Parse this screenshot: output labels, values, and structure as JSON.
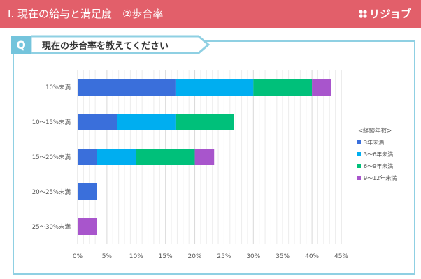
{
  "header": {
    "title": "I. 現在の給与と満足度　②歩合率",
    "brand": "リジョブ"
  },
  "question": {
    "badge": "Q",
    "text": "現在の歩合率を教えてください"
  },
  "colors": {
    "header_bg": "#e25f6a",
    "accent": "#74c4dc"
  },
  "chart_data": {
    "type": "bar",
    "orientation": "horizontal",
    "stacked": true,
    "categories": [
      "10%未満",
      "10～15%未満",
      "15～20%未満",
      "20～25%未満",
      "25～30%未満"
    ],
    "series": [
      {
        "name": "3年未満",
        "color": "#3a6fdb",
        "values": [
          16.7,
          6.7,
          3.3,
          3.3,
          0
        ]
      },
      {
        "name": "3～6年未満",
        "color": "#00aef0",
        "values": [
          13.3,
          10.0,
          6.7,
          0,
          0
        ]
      },
      {
        "name": "6～9年未満",
        "color": "#00c07a",
        "values": [
          10.0,
          10.0,
          10.0,
          0,
          0
        ]
      },
      {
        "name": "9～12年未満",
        "color": "#a855cc",
        "values": [
          3.3,
          0,
          3.3,
          0,
          3.3
        ]
      }
    ],
    "xlim": [
      0,
      45
    ],
    "xticks": [
      "0%",
      "5%",
      "10%",
      "15%",
      "20%",
      "25%",
      "30%",
      "35%",
      "40%",
      "45%"
    ],
    "legend_title": "<経験年数>",
    "legend_position": "right",
    "grid": true
  }
}
